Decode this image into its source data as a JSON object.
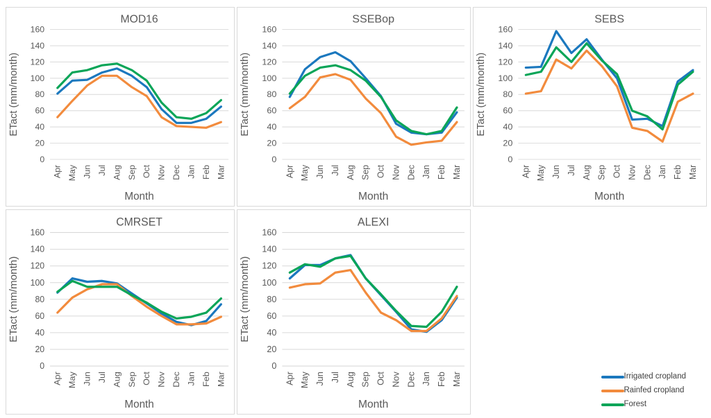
{
  "figure": {
    "background": "#ffffff",
    "panel_border": "#d9d9d9",
    "grid_color": "#d9d9d9",
    "text_color": "#595959",
    "legend_text_color": "#404040"
  },
  "colors": {
    "irrigated": "#1b78be",
    "rainfed": "#f28b3d",
    "forest": "#0aa558"
  },
  "legend": {
    "items": [
      {
        "label": "Irrigated cropland",
        "color": "irrigated"
      },
      {
        "label": "Rainfed cropland",
        "color": "rainfed"
      },
      {
        "label": "Forest",
        "color": "forest"
      }
    ]
  },
  "axes": {
    "ylabel": "ETact (mm/month)",
    "xlabel": "Month",
    "ymin": 0,
    "ymax": 160,
    "ystep": 20,
    "yticks": [
      160,
      140,
      120,
      100,
      80,
      60,
      40,
      20,
      0
    ],
    "ylim": [
      0,
      160
    ],
    "grid": true
  },
  "chart_data": [
    {
      "type": "line",
      "title": "MOD16",
      "xlabel": "Month",
      "ylabel": "ETact (mm/month)",
      "ylim": [
        0,
        160
      ],
      "categories": [
        "Apr",
        "May",
        "Jun",
        "Jul",
        "Aug",
        "Sep",
        "Oct",
        "Nov",
        "Dec",
        "Jan",
        "Feb",
        "Mar"
      ],
      "series": [
        {
          "name": "Irrigated cropland",
          "color": "irrigated",
          "values": [
            81,
            97,
            98,
            107,
            112,
            103,
            89,
            62,
            45,
            45,
            50,
            65
          ]
        },
        {
          "name": "Rainfed cropland",
          "color": "rainfed",
          "values": [
            52,
            72,
            91,
            103,
            103,
            89,
            78,
            52,
            41,
            40,
            39,
            46
          ]
        },
        {
          "name": "Forest",
          "color": "forest",
          "values": [
            88,
            107,
            110,
            116,
            118,
            110,
            97,
            70,
            52,
            50,
            57,
            73
          ]
        }
      ]
    },
    {
      "type": "line",
      "title": "SSEBop",
      "xlabel": "Month",
      "ylabel": "ETact (mm/month)",
      "ylim": [
        0,
        160
      ],
      "categories": [
        "Apr",
        "May",
        "Jun",
        "Jul",
        "Aug",
        "Sep",
        "Oct",
        "Nov",
        "Dec",
        "Jan",
        "Feb",
        "Mar"
      ],
      "series": [
        {
          "name": "Irrigated cropland",
          "color": "irrigated",
          "values": [
            77,
            111,
            126,
            132,
            121,
            100,
            78,
            44,
            33,
            31,
            33,
            58
          ]
        },
        {
          "name": "Rainfed cropland",
          "color": "rainfed",
          "values": [
            63,
            77,
            101,
            105,
            98,
            75,
            57,
            28,
            18,
            21,
            23,
            46
          ]
        },
        {
          "name": "Forest",
          "color": "forest",
          "values": [
            81,
            103,
            113,
            116,
            110,
            97,
            77,
            48,
            35,
            31,
            35,
            64
          ]
        }
      ]
    },
    {
      "type": "line",
      "title": "SEBS",
      "xlabel": "Month",
      "ylabel": "ETact (mm/month)",
      "ylim": [
        0,
        160
      ],
      "categories": [
        "Apr",
        "May",
        "Jun",
        "Jul",
        "Aug",
        "Sep",
        "Oct",
        "Nov",
        "Dec",
        "Jan",
        "Feb",
        "Mar"
      ],
      "series": [
        {
          "name": "Irrigated cropland",
          "color": "irrigated",
          "values": [
            113,
            114,
            158,
            131,
            148,
            123,
            100,
            49,
            50,
            41,
            96,
            110
          ]
        },
        {
          "name": "Rainfed cropland",
          "color": "rainfed",
          "values": [
            81,
            84,
            123,
            112,
            134,
            115,
            90,
            39,
            35,
            22,
            71,
            81
          ]
        },
        {
          "name": "Forest",
          "color": "forest",
          "values": [
            104,
            108,
            138,
            120,
            143,
            122,
            105,
            60,
            53,
            37,
            92,
            108
          ]
        }
      ]
    },
    {
      "type": "line",
      "title": "CMRSET",
      "xlabel": "Month",
      "ylabel": "ETact (mm/month)",
      "ylim": [
        0,
        160
      ],
      "categories": [
        "Apr",
        "May",
        "Jun",
        "Jul",
        "Aug",
        "Sep",
        "Oct",
        "Nov",
        "Dec",
        "Jan",
        "Feb",
        "Mar"
      ],
      "series": [
        {
          "name": "Irrigated cropland",
          "color": "irrigated",
          "values": [
            88,
            105,
            101,
            102,
            99,
            87,
            75,
            63,
            53,
            49,
            54,
            74
          ]
        },
        {
          "name": "Rainfed cropland",
          "color": "rainfed",
          "values": [
            64,
            82,
            92,
            98,
            98,
            84,
            71,
            60,
            50,
            50,
            51,
            59
          ]
        },
        {
          "name": "Forest",
          "color": "forest",
          "values": [
            89,
            102,
            95,
            95,
            95,
            85,
            76,
            65,
            57,
            59,
            64,
            81
          ]
        }
      ]
    },
    {
      "type": "line",
      "title": "ALEXI",
      "xlabel": "Month",
      "ylabel": "ETact (mm/month)",
      "ylim": [
        0,
        160
      ],
      "categories": [
        "Apr",
        "May",
        "Jun",
        "Jul",
        "Aug",
        "Sep",
        "Oct",
        "Nov",
        "Dec",
        "Jan",
        "Feb",
        "Mar"
      ],
      "series": [
        {
          "name": "Irrigated cropland",
          "color": "irrigated",
          "values": [
            105,
            121,
            121,
            129,
            133,
            105,
            85,
            65,
            44,
            41,
            55,
            82
          ]
        },
        {
          "name": "Rainfed cropland",
          "color": "rainfed",
          "values": [
            94,
            98,
            99,
            112,
            115,
            88,
            64,
            55,
            42,
            42,
            57,
            84
          ]
        },
        {
          "name": "Forest",
          "color": "forest",
          "values": [
            112,
            122,
            119,
            129,
            132,
            105,
            86,
            66,
            48,
            47,
            65,
            95
          ]
        }
      ]
    }
  ]
}
